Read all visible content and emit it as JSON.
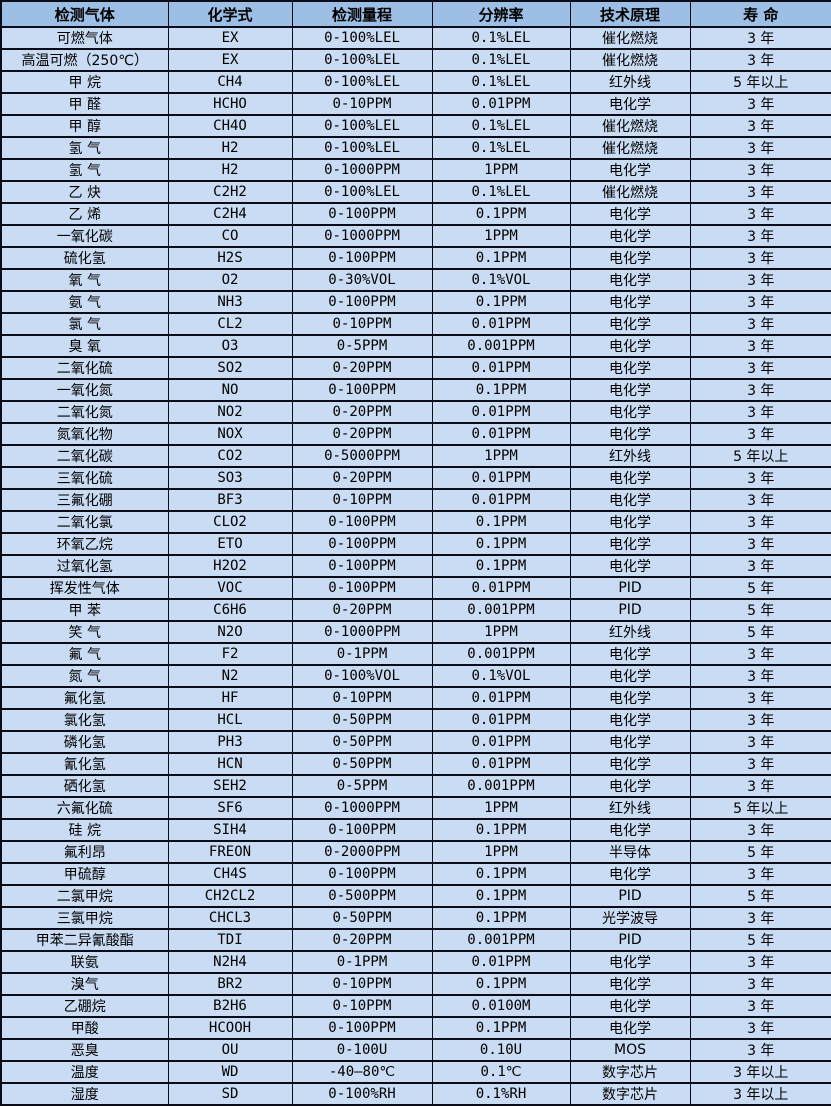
{
  "table": {
    "columns": [
      "检测气体",
      "化学式",
      "检测量程",
      "分辨率",
      "技术原理",
      "寿 命"
    ],
    "rows": [
      [
        "可燃气体",
        "EX",
        "0-100%LEL",
        "0.1%LEL",
        "催化燃烧",
        "3 年"
      ],
      [
        "高温可燃（250℃）",
        "EX",
        "0-100%LEL",
        "0.1%LEL",
        "催化燃烧",
        "3 年"
      ],
      [
        "甲 烷",
        "CH4",
        "0-100%LEL",
        "0.1%LEL",
        "红外线",
        "5 年以上"
      ],
      [
        "甲 醛",
        "HCHO",
        "0-10PPM",
        "0.01PPM",
        "电化学",
        "3 年"
      ],
      [
        "甲 醇",
        "CH4O",
        "0-100%LEL",
        "0.1%LEL",
        "催化燃烧",
        "3 年"
      ],
      [
        "氢 气",
        "H2",
        "0-100%LEL",
        "0.1%LEL",
        "催化燃烧",
        "3 年"
      ],
      [
        "氢 气",
        "H2",
        "0-1000PPM",
        "1PPM",
        "电化学",
        "3 年"
      ],
      [
        "乙 炔",
        "C2H2",
        "0-100%LEL",
        "0.1%LEL",
        "催化燃烧",
        "3 年"
      ],
      [
        "乙 烯",
        "C2H4",
        "0-100PPM",
        "0.1PPM",
        "电化学",
        "3 年"
      ],
      [
        "一氧化碳",
        "CO",
        "0-1000PPM",
        "1PPM",
        "电化学",
        "3 年"
      ],
      [
        "硫化氢",
        "H2S",
        "0-100PPM",
        "0.1PPM",
        "电化学",
        "3 年"
      ],
      [
        "氧 气",
        "O2",
        "0-30%VOL",
        "0.1%VOL",
        "电化学",
        "3 年"
      ],
      [
        "氨 气",
        "NH3",
        "0-100PPM",
        "0.1PPM",
        "电化学",
        "3 年"
      ],
      [
        "氯 气",
        "CL2",
        "0-10PPM",
        "0.01PPM",
        "电化学",
        "3 年"
      ],
      [
        "臭 氧",
        "O3",
        "0-5PPM",
        "0.001PPM",
        "电化学",
        "3 年"
      ],
      [
        "二氧化硫",
        "SO2",
        "0-20PPM",
        "0.01PPM",
        "电化学",
        "3 年"
      ],
      [
        "一氧化氮",
        "NO",
        "0-100PPM",
        "0.1PPM",
        "电化学",
        "3 年"
      ],
      [
        "二氧化氮",
        "NO2",
        "0-20PPM",
        "0.01PPM",
        "电化学",
        "3 年"
      ],
      [
        "氮氧化物",
        "NOX",
        "0-20PPM",
        "0.01PPM",
        "电化学",
        "3 年"
      ],
      [
        "二氧化碳",
        "CO2",
        "0-5000PPM",
        "1PPM",
        "红外线",
        "5 年以上"
      ],
      [
        "三氧化硫",
        "SO3",
        "0-20PPM",
        "0.01PPM",
        "电化学",
        "3 年"
      ],
      [
        "三氟化硼",
        "BF3",
        "0-10PPM",
        "0.01PPM",
        "电化学",
        "3 年"
      ],
      [
        "二氧化氯",
        "CLO2",
        "0-100PPM",
        "0.1PPM",
        "电化学",
        "3 年"
      ],
      [
        "环氧乙烷",
        "ETO",
        "0-100PPM",
        "0.1PPM",
        "电化学",
        "3 年"
      ],
      [
        "过氧化氢",
        "H2O2",
        "0-100PPM",
        "0.1PPM",
        "电化学",
        "3 年"
      ],
      [
        "挥发性气体",
        "VOC",
        "0-100PPM",
        "0.01PPM",
        "PID",
        "5 年"
      ],
      [
        "甲 苯",
        "C6H6",
        "0-20PPM",
        "0.001PPM",
        "PID",
        "5 年"
      ],
      [
        "笑 气",
        "N2O",
        "0-1000PPM",
        "1PPM",
        "红外线",
        "5 年"
      ],
      [
        "氟 气",
        "F2",
        "0-1PPM",
        "0.001PPM",
        "电化学",
        "3 年"
      ],
      [
        "氮 气",
        "N2",
        "0-100%VOL",
        "0.1%VOL",
        "电化学",
        "3 年"
      ],
      [
        "氟化氢",
        "HF",
        "0-10PPM",
        "0.01PPM",
        "电化学",
        "3 年"
      ],
      [
        "氯化氢",
        "HCL",
        "0-50PPM",
        "0.01PPM",
        "电化学",
        "3 年"
      ],
      [
        "磷化氢",
        "PH3",
        "0-50PPM",
        "0.01PPM",
        "电化学",
        "3 年"
      ],
      [
        "氰化氢",
        "HCN",
        "0-50PPM",
        "0.01PPM",
        "电化学",
        "3 年"
      ],
      [
        "硒化氢",
        "SEH2",
        "0-5PPM",
        "0.001PPM",
        "电化学",
        "3 年"
      ],
      [
        "六氟化硫",
        "SF6",
        "0-1000PPM",
        "1PPM",
        "红外线",
        "5 年以上"
      ],
      [
        "硅 烷",
        "SIH4",
        "0-100PPM",
        "0.1PPM",
        "电化学",
        "3 年"
      ],
      [
        "氟利昂",
        "FREON",
        "0-2000PPM",
        "1PPM",
        "半导体",
        "5 年"
      ],
      [
        "甲硫醇",
        "CH4S",
        "0-100PPM",
        "0.1PPM",
        "电化学",
        "3 年"
      ],
      [
        "二氯甲烷",
        "CH2CL2",
        "0-500PPM",
        "0.1PPM",
        "PID",
        "5 年"
      ],
      [
        "三氯甲烷",
        "CHCL3",
        "0-50PPM",
        "0.1PPM",
        "光学波导",
        "3 年"
      ],
      [
        "甲苯二异氰酸酯",
        "TDI",
        "0-20PPM",
        "0.001PPM",
        "PID",
        "5 年"
      ],
      [
        "联氨",
        "N2H4",
        "0-1PPM",
        "0.01PPM",
        "电化学",
        "3 年"
      ],
      [
        "溴气",
        "BR2",
        "0-10PPM",
        "0.1PPM",
        "电化学",
        "3 年"
      ],
      [
        "乙硼烷",
        "B2H6",
        "0-10PPM",
        "0.0100M",
        "电化学",
        "3 年"
      ],
      [
        "甲酸",
        "HCOOH",
        "0-100PPM",
        "0.1PPM",
        "电化学",
        "3 年"
      ],
      [
        "恶臭",
        "OU",
        "0-100U",
        "0.10U",
        "MOS",
        "3 年"
      ],
      [
        "温度",
        "WD",
        "-40—80℃",
        "0.1℃",
        "数字芯片",
        "3 年以上"
      ],
      [
        "湿度",
        "SD",
        "0-100%RH",
        "0.1%RH",
        "数字芯片",
        "3 年以上"
      ]
    ],
    "colors": {
      "header_bg": "#9dbfe6",
      "row_bg": "#c9dcf3",
      "border": "#0c0c18"
    }
  }
}
